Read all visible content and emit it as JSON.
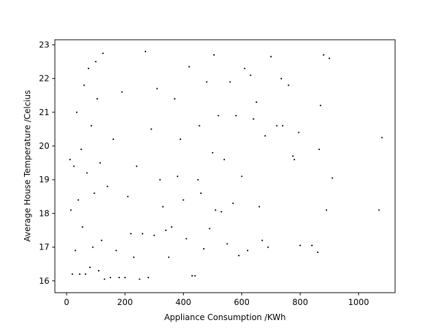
{
  "chart_data": {
    "type": "scatter",
    "title": "",
    "xlabel": "Appliance Consumption /KWh",
    "ylabel": "Average House Temperature /Celcius",
    "xlim": [
      -40,
      1125
    ],
    "ylim": [
      15.65,
      23.15
    ],
    "xticks": [
      0,
      200,
      400,
      600,
      800,
      1000
    ],
    "yticks": [
      16,
      17,
      18,
      19,
      20,
      21,
      22,
      23
    ],
    "xtick_labels": [
      "0",
      "200",
      "400",
      "600",
      "800",
      "1000"
    ],
    "ytick_labels": [
      "16",
      "17",
      "18",
      "19",
      "20",
      "21",
      "22",
      "23"
    ],
    "grid": false,
    "marker_color": "#000000",
    "series": [
      {
        "points": [
          [
            1080,
            20.25
          ],
          [
            1070,
            18.1
          ],
          [
            910,
            19.05
          ],
          [
            900,
            22.6
          ],
          [
            890,
            18.1
          ],
          [
            880,
            22.7
          ],
          [
            870,
            21.2
          ],
          [
            865,
            19.9
          ],
          [
            860,
            16.85
          ],
          [
            840,
            17.05
          ],
          [
            800,
            17.05
          ],
          [
            795,
            20.4
          ],
          [
            780,
            19.6
          ],
          [
            775,
            19.7
          ],
          [
            760,
            21.8
          ],
          [
            740,
            20.6
          ],
          [
            735,
            22.0
          ],
          [
            720,
            20.6
          ],
          [
            700,
            22.65
          ],
          [
            690,
            17.0
          ],
          [
            680,
            20.3
          ],
          [
            670,
            17.2
          ],
          [
            660,
            18.2
          ],
          [
            650,
            21.3
          ],
          [
            640,
            20.8
          ],
          [
            630,
            22.1
          ],
          [
            620,
            16.9
          ],
          [
            610,
            22.3
          ],
          [
            600,
            19.1
          ],
          [
            590,
            16.75
          ],
          [
            580,
            20.9
          ],
          [
            570,
            18.3
          ],
          [
            560,
            21.9
          ],
          [
            550,
            17.1
          ],
          [
            540,
            19.6
          ],
          [
            530,
            18.05
          ],
          [
            520,
            20.9
          ],
          [
            510,
            18.1
          ],
          [
            505,
            22.7
          ],
          [
            500,
            19.8
          ],
          [
            490,
            17.55
          ],
          [
            480,
            21.9
          ],
          [
            470,
            16.95
          ],
          [
            460,
            18.6
          ],
          [
            455,
            20.6
          ],
          [
            450,
            19.0
          ],
          [
            440,
            16.15
          ],
          [
            430,
            16.15
          ],
          [
            420,
            22.35
          ],
          [
            410,
            17.25
          ],
          [
            400,
            18.4
          ],
          [
            390,
            20.2
          ],
          [
            380,
            19.1
          ],
          [
            370,
            21.4
          ],
          [
            360,
            17.6
          ],
          [
            350,
            16.7
          ],
          [
            340,
            17.5
          ],
          [
            330,
            18.2
          ],
          [
            320,
            19.0
          ],
          [
            310,
            21.7
          ],
          [
            300,
            17.35
          ],
          [
            290,
            20.5
          ],
          [
            280,
            16.1
          ],
          [
            270,
            22.8
          ],
          [
            260,
            17.4
          ],
          [
            250,
            16.05
          ],
          [
            240,
            19.4
          ],
          [
            230,
            16.7
          ],
          [
            220,
            17.4
          ],
          [
            210,
            18.5
          ],
          [
            200,
            16.1
          ],
          [
            190,
            21.6
          ],
          [
            180,
            16.1
          ],
          [
            170,
            16.9
          ],
          [
            160,
            20.2
          ],
          [
            150,
            16.1
          ],
          [
            140,
            18.8
          ],
          [
            130,
            16.05
          ],
          [
            125,
            22.75
          ],
          [
            120,
            17.2
          ],
          [
            115,
            19.5
          ],
          [
            110,
            16.3
          ],
          [
            105,
            21.4
          ],
          [
            100,
            22.5
          ],
          [
            95,
            18.6
          ],
          [
            90,
            17.0
          ],
          [
            85,
            20.6
          ],
          [
            80,
            16.4
          ],
          [
            75,
            22.3
          ],
          [
            70,
            19.2
          ],
          [
            65,
            16.2
          ],
          [
            60,
            21.8
          ],
          [
            55,
            17.6
          ],
          [
            50,
            19.9
          ],
          [
            45,
            16.2
          ],
          [
            40,
            18.4
          ],
          [
            35,
            21.0
          ],
          [
            30,
            16.9
          ],
          [
            25,
            19.4
          ],
          [
            20,
            16.2
          ],
          [
            15,
            18.1
          ],
          [
            12,
            19.6
          ]
        ]
      }
    ]
  }
}
